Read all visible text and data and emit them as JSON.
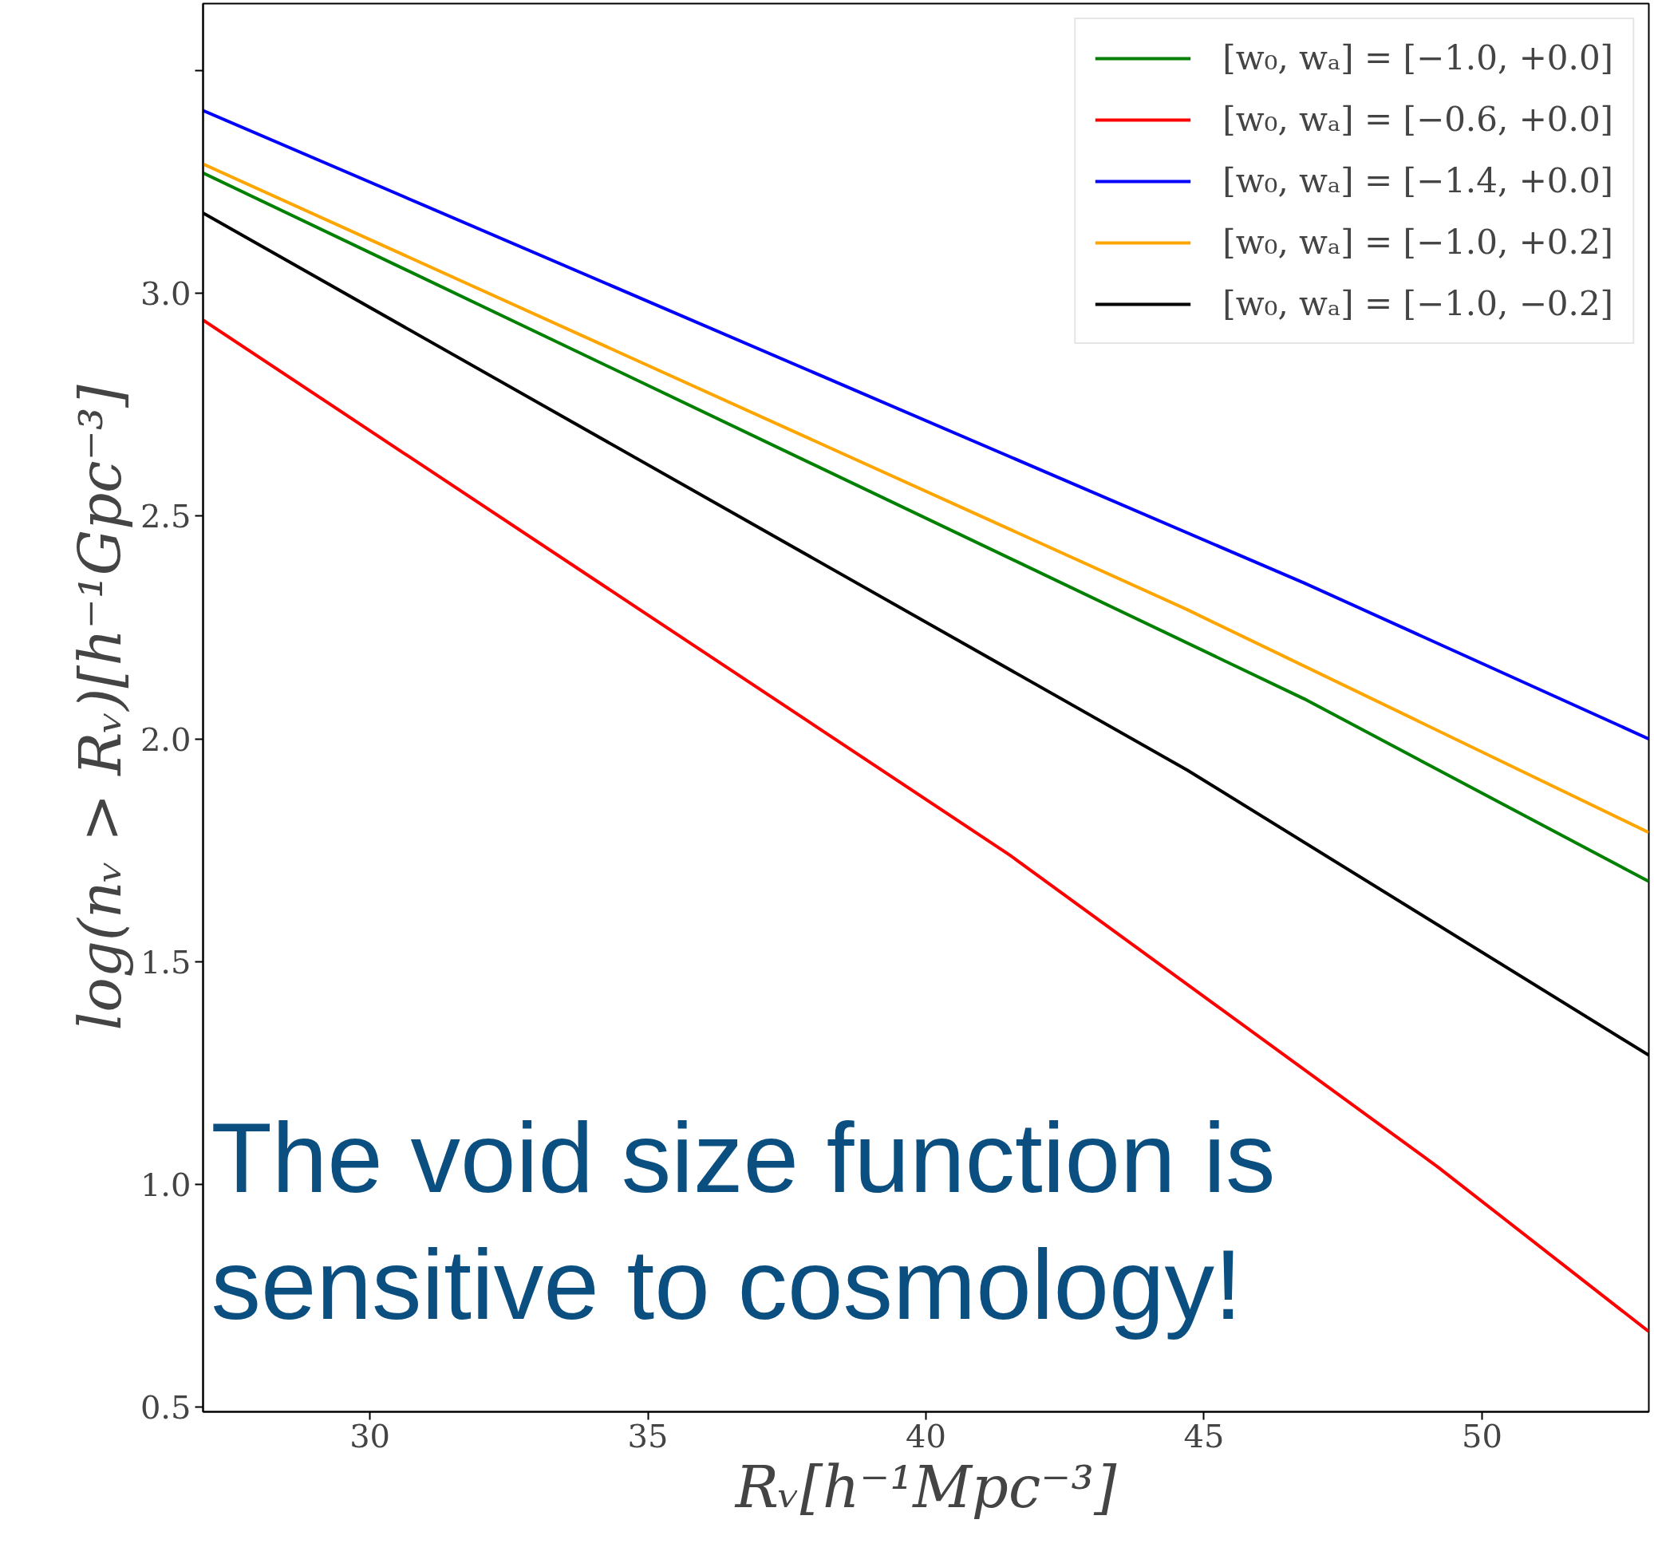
{
  "chart_data": {
    "type": "line",
    "xlabel": "Rᵥ[h⁻¹Mpc⁻³]",
    "ylabel": "log(nᵥ > Rᵥ)[h⁻¹Gpc⁻³]",
    "xlim": [
      27,
      53
    ],
    "ylim": [
      0.49,
      3.65
    ],
    "xticks": [
      30,
      35,
      40,
      45,
      50
    ],
    "yticks": [
      0.5,
      {
        "value": 1,
        "label": "1.0"
      },
      1.5,
      {
        "value": 2,
        "label": "2.0"
      },
      2.5,
      {
        "value": 3,
        "label": "3.0"
      },
      {
        "value": 3.5,
        "label": null
      }
    ],
    "grid": false,
    "legend": "top right",
    "marker": "none",
    "line_style": "solid",
    "annotations": [
      "The void size function is\nsensitive to cosmology!"
    ],
    "series": [
      {
        "name": "[w₀, wₐ] = [−1.0, +0.0]",
        "color": "#008000",
        "x": [
          27,
          46.8,
          53
        ],
        "values": [
          3.27,
          2.09,
          1.68
        ]
      },
      {
        "name": "[w₀, wₐ] = [−0.6, +0.0]",
        "color": "#ff0000",
        "x": [
          27,
          41.5,
          49.2,
          53
        ],
        "values": [
          2.94,
          1.74,
          1.04,
          0.67
        ]
      },
      {
        "name": "[w₀, wₐ] = [−1.4, +0.0]",
        "color": "#0000ff",
        "x": [
          27,
          46.8,
          53
        ],
        "values": [
          3.41,
          2.35,
          2.0
        ]
      },
      {
        "name": "[w₀, wₐ] = [−1.0, +0.2]",
        "color": "#ffa500",
        "x": [
          27,
          44.7,
          53
        ],
        "values": [
          3.29,
          2.29,
          1.79
        ]
      },
      {
        "name": "[w₀, wₐ] = [−1.0, −0.2]",
        "color": "#000000",
        "x": [
          27,
          44.7,
          53
        ],
        "values": [
          3.18,
          1.93,
          1.29
        ]
      }
    ]
  }
}
